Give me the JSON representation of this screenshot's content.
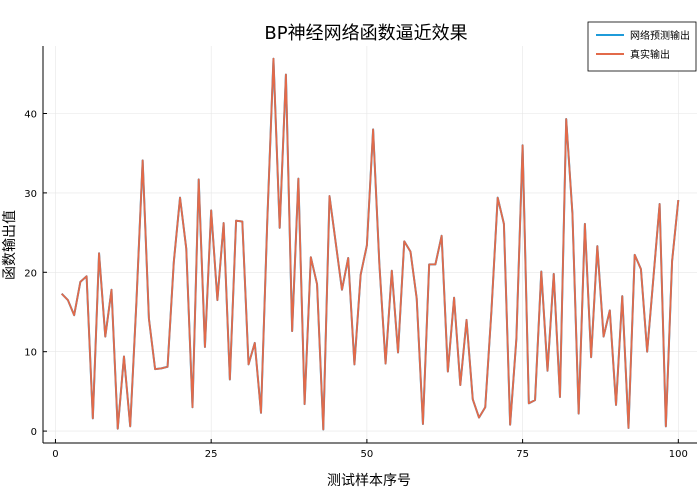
{
  "chart_data": {
    "type": "line",
    "title": "BP神经网络函数逼近效果",
    "xlabel": "测试样本序号",
    "ylabel": "函数输出值",
    "xlim": [
      -2,
      103
    ],
    "ylim": [
      -1.5,
      48.5
    ],
    "xticks": [
      0,
      25,
      50,
      75,
      100
    ],
    "yticks": [
      0,
      10,
      20,
      30,
      40
    ],
    "grid": true,
    "legend_position": "top-right",
    "x": [
      1,
      2,
      3,
      4,
      5,
      6,
      7,
      8,
      9,
      10,
      11,
      12,
      13,
      14,
      15,
      16,
      17,
      18,
      19,
      20,
      21,
      22,
      23,
      24,
      25,
      26,
      27,
      28,
      29,
      30,
      31,
      32,
      33,
      34,
      35,
      36,
      37,
      38,
      39,
      40,
      41,
      42,
      43,
      44,
      45,
      46,
      47,
      48,
      49,
      50,
      51,
      52,
      53,
      54,
      55,
      56,
      57,
      58,
      59,
      60,
      61,
      62,
      63,
      64,
      65,
      66,
      67,
      68,
      69,
      70,
      71,
      72,
      73,
      74,
      75,
      76,
      77,
      78,
      79,
      80,
      81,
      82,
      83,
      84,
      85,
      86,
      87,
      88,
      89,
      90,
      91,
      92,
      93,
      94,
      95,
      96,
      97,
      98,
      99,
      100
    ],
    "series": [
      {
        "name": "网络预测输出",
        "color": "#1f9bd9",
        "values": [
          17.3,
          16.5,
          14.6,
          18.8,
          19.5,
          1.6,
          22.4,
          11.9,
          17.8,
          0.3,
          9.4,
          0.6,
          16.3,
          34.1,
          14.2,
          7.8,
          7.9,
          8.1,
          21.3,
          29.4,
          23.0,
          3.0,
          31.7,
          10.6,
          27.8,
          16.5,
          26.2,
          6.5,
          26.5,
          26.4,
          8.4,
          11.1,
          2.3,
          26.3,
          46.9,
          25.6,
          44.9,
          12.6,
          31.8,
          3.4,
          21.9,
          18.5,
          0.2,
          29.6,
          23.7,
          17.8,
          21.8,
          8.4,
          19.7,
          23.4,
          38.0,
          21.1,
          8.5,
          20.2,
          9.9,
          23.9,
          22.6,
          16.7,
          0.9,
          21.0,
          21.0,
          24.6,
          7.5,
          16.8,
          5.8,
          14.0,
          4.0,
          1.7,
          3.0,
          15.2,
          29.4,
          26.1,
          0.8,
          11.6,
          36.0,
          3.5,
          3.9,
          20.1,
          7.6,
          19.8,
          4.3,
          39.3,
          27.4,
          2.2,
          26.1,
          9.3,
          23.3,
          11.9,
          15.2,
          3.3,
          17.0,
          0.4,
          22.2,
          20.4,
          10.0,
          19.3,
          28.6,
          0.6,
          21.4,
          29.1
        ]
      },
      {
        "name": "真实输出",
        "color": "#e26a4a",
        "values": [
          17.3,
          16.5,
          14.6,
          18.8,
          19.5,
          1.6,
          22.4,
          11.9,
          17.8,
          0.3,
          9.4,
          0.6,
          16.3,
          34.1,
          14.2,
          7.8,
          7.9,
          8.1,
          21.3,
          29.4,
          23.0,
          3.0,
          31.7,
          10.6,
          27.8,
          16.5,
          26.2,
          6.5,
          26.5,
          26.4,
          8.4,
          11.1,
          2.3,
          26.3,
          46.9,
          25.6,
          44.9,
          12.6,
          31.8,
          3.4,
          21.9,
          18.5,
          0.2,
          29.6,
          23.7,
          17.8,
          21.8,
          8.4,
          19.7,
          23.4,
          38.0,
          21.1,
          8.5,
          20.2,
          9.9,
          23.9,
          22.6,
          16.7,
          0.9,
          21.0,
          21.0,
          24.6,
          7.5,
          16.8,
          5.8,
          14.0,
          4.0,
          1.7,
          3.0,
          15.2,
          29.4,
          26.1,
          0.8,
          11.6,
          36.0,
          3.5,
          3.9,
          20.1,
          7.6,
          19.8,
          4.3,
          39.3,
          27.4,
          2.2,
          26.1,
          9.3,
          23.3,
          11.9,
          15.2,
          3.3,
          17.0,
          0.4,
          22.2,
          20.4,
          10.0,
          19.3,
          28.6,
          0.6,
          21.4,
          29.1
        ]
      }
    ]
  }
}
